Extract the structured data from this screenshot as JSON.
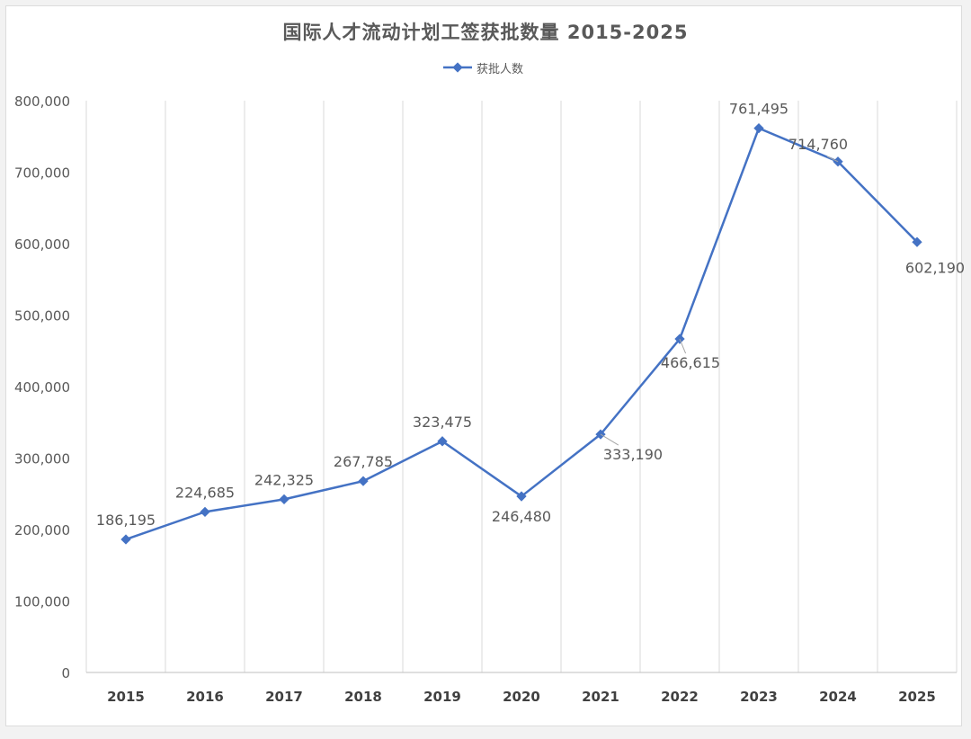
{
  "chart_data": {
    "type": "line",
    "title": "国际人才流动计划工签获批数量 2015-2025",
    "categories": [
      "2015",
      "2016",
      "2017",
      "2018",
      "2019",
      "2020",
      "2021",
      "2022",
      "2023",
      "2024",
      "2025"
    ],
    "series": [
      {
        "name": "获批人数",
        "values": [
          186195,
          224685,
          242325,
          267785,
          323475,
          246480,
          333190,
          466615,
          761495,
          714760,
          602190
        ],
        "data_labels": [
          "186,195",
          "224,685",
          "242,325",
          "267,785",
          "323,475",
          "246,480",
          "333,190",
          "466,615",
          "761,495",
          "714,760",
          "602,190"
        ],
        "color": "#4472c4"
      }
    ],
    "ylim": [
      0,
      800000
    ],
    "yticks": [
      "0",
      "100,000",
      "200,000",
      "300,000",
      "400,000",
      "500,000",
      "600,000",
      "700,000",
      "800,000"
    ],
    "grid": "vertical",
    "legend_position": "top-center"
  }
}
